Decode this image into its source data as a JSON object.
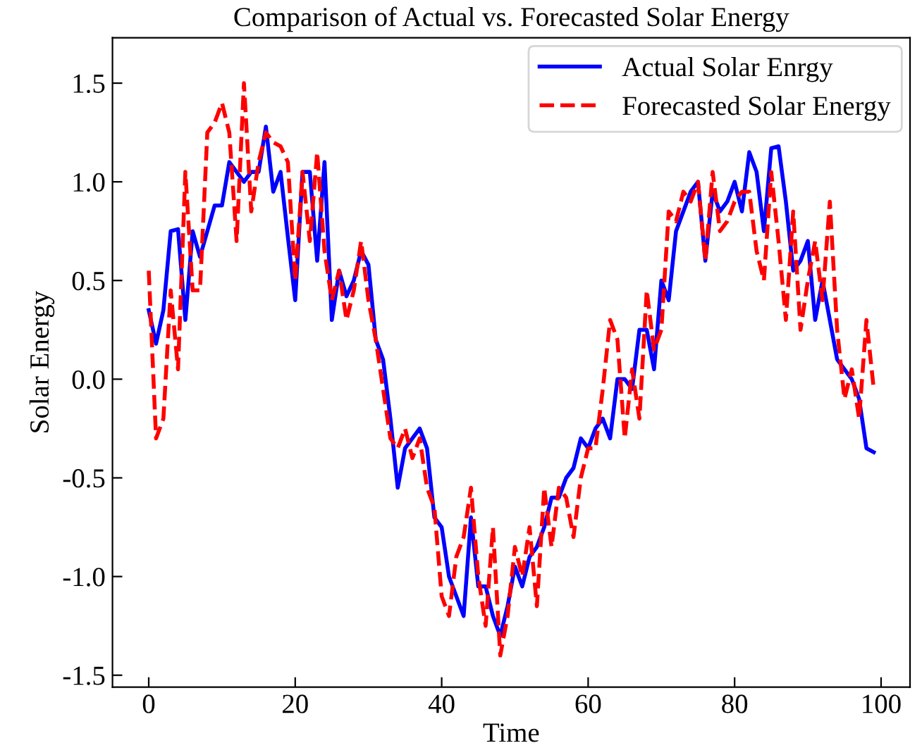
{
  "chart_data": {
    "type": "line",
    "title": "Comparison of Actual vs. Forecasted Solar Energy",
    "xlabel": "Time",
    "ylabel": "Solar Energy",
    "x": [
      0,
      1,
      2,
      3,
      4,
      5,
      6,
      7,
      8,
      9,
      10,
      11,
      12,
      13,
      14,
      15,
      16,
      17,
      18,
      19,
      20,
      21,
      22,
      23,
      24,
      25,
      26,
      27,
      28,
      29,
      30,
      31,
      32,
      33,
      34,
      35,
      36,
      37,
      38,
      39,
      40,
      41,
      42,
      43,
      44,
      45,
      46,
      47,
      48,
      49,
      50,
      51,
      52,
      53,
      54,
      55,
      56,
      57,
      58,
      59,
      60,
      61,
      62,
      63,
      64,
      65,
      66,
      67,
      68,
      69,
      70,
      71,
      72,
      73,
      74,
      75,
      76,
      77,
      78,
      79,
      80,
      81,
      82,
      83,
      84,
      85,
      86,
      87,
      88,
      89,
      90,
      91,
      92,
      93,
      94,
      95,
      96,
      97,
      98,
      99
    ],
    "series": [
      {
        "name": "Actual Solar Enrgy",
        "color": "#0000ff",
        "line_style": "solid",
        "values": [
          0.35,
          0.18,
          0.35,
          0.75,
          0.76,
          0.3,
          0.75,
          0.62,
          0.75,
          0.88,
          0.88,
          1.1,
          1.05,
          1.0,
          1.05,
          1.05,
          1.28,
          0.95,
          1.05,
          0.72,
          0.4,
          1.05,
          1.05,
          0.6,
          1.1,
          0.3,
          0.55,
          0.42,
          0.5,
          0.65,
          0.58,
          0.2,
          0.1,
          -0.2,
          -0.55,
          -0.35,
          -0.3,
          -0.25,
          -0.35,
          -0.7,
          -0.75,
          -1.0,
          -1.1,
          -1.2,
          -0.7,
          -1.05,
          -1.05,
          -1.2,
          -1.3,
          -1.15,
          -0.95,
          -1.05,
          -0.9,
          -0.85,
          -0.75,
          -0.6,
          -0.6,
          -0.5,
          -0.45,
          -0.3,
          -0.35,
          -0.25,
          -0.2,
          -0.3,
          0.0,
          0.0,
          -0.05,
          0.25,
          0.25,
          0.05,
          0.5,
          0.4,
          0.75,
          0.85,
          0.95,
          1.0,
          0.6,
          0.95,
          0.85,
          0.9,
          1.0,
          0.85,
          1.15,
          1.05,
          0.75,
          1.17,
          1.18,
          0.9,
          0.55,
          0.6,
          0.7,
          0.3,
          0.5,
          0.3,
          0.1,
          0.05,
          0.0,
          -0.1,
          -0.35,
          -0.37
        ]
      },
      {
        "name": "Forecasted Solar Energy",
        "color": "#ff0000",
        "line_style": "dashed",
        "values": [
          0.55,
          -0.3,
          -0.2,
          0.45,
          0.05,
          1.05,
          0.45,
          0.45,
          1.25,
          1.3,
          1.4,
          1.25,
          0.7,
          1.5,
          0.85,
          1.1,
          1.25,
          1.2,
          1.18,
          1.1,
          0.5,
          1.05,
          0.7,
          1.15,
          0.65,
          0.4,
          0.55,
          0.3,
          0.45,
          0.7,
          0.4,
          0.2,
          -0.05,
          -0.3,
          -0.35,
          -0.25,
          -0.4,
          -0.3,
          -0.55,
          -0.65,
          -1.1,
          -1.2,
          -0.9,
          -0.8,
          -0.55,
          -1.0,
          -1.25,
          -0.75,
          -1.4,
          -1.2,
          -0.85,
          -1.0,
          -0.75,
          -1.15,
          -0.55,
          -0.85,
          -0.55,
          -0.6,
          -0.8,
          -0.5,
          -0.35,
          -0.35,
          -0.05,
          0.3,
          0.2,
          -0.3,
          0.05,
          -0.2,
          0.45,
          0.15,
          0.25,
          0.85,
          0.8,
          0.95,
          0.9,
          1.0,
          0.6,
          1.05,
          0.75,
          0.8,
          0.9,
          0.95,
          0.95,
          0.65,
          0.5,
          1.05,
          0.7,
          0.3,
          0.85,
          0.25,
          0.5,
          0.7,
          0.4,
          0.9,
          0.25,
          -0.1,
          0.05,
          -0.2,
          0.3,
          -0.05
        ]
      }
    ],
    "xlim": [
      -4.95,
      103.95
    ],
    "ylim": [
      -1.56,
      1.73
    ],
    "xticks": [
      0,
      20,
      40,
      60,
      80,
      100
    ],
    "yticks": [
      -1.5,
      {
        "value": -1,
        "label": "-1.0"
      },
      -0.5,
      {
        "value": 0,
        "label": "0.0"
      },
      0.5,
      {
        "value": 1,
        "label": "1.0"
      },
      1.5
    ],
    "legend": "top right",
    "grid": false
  }
}
